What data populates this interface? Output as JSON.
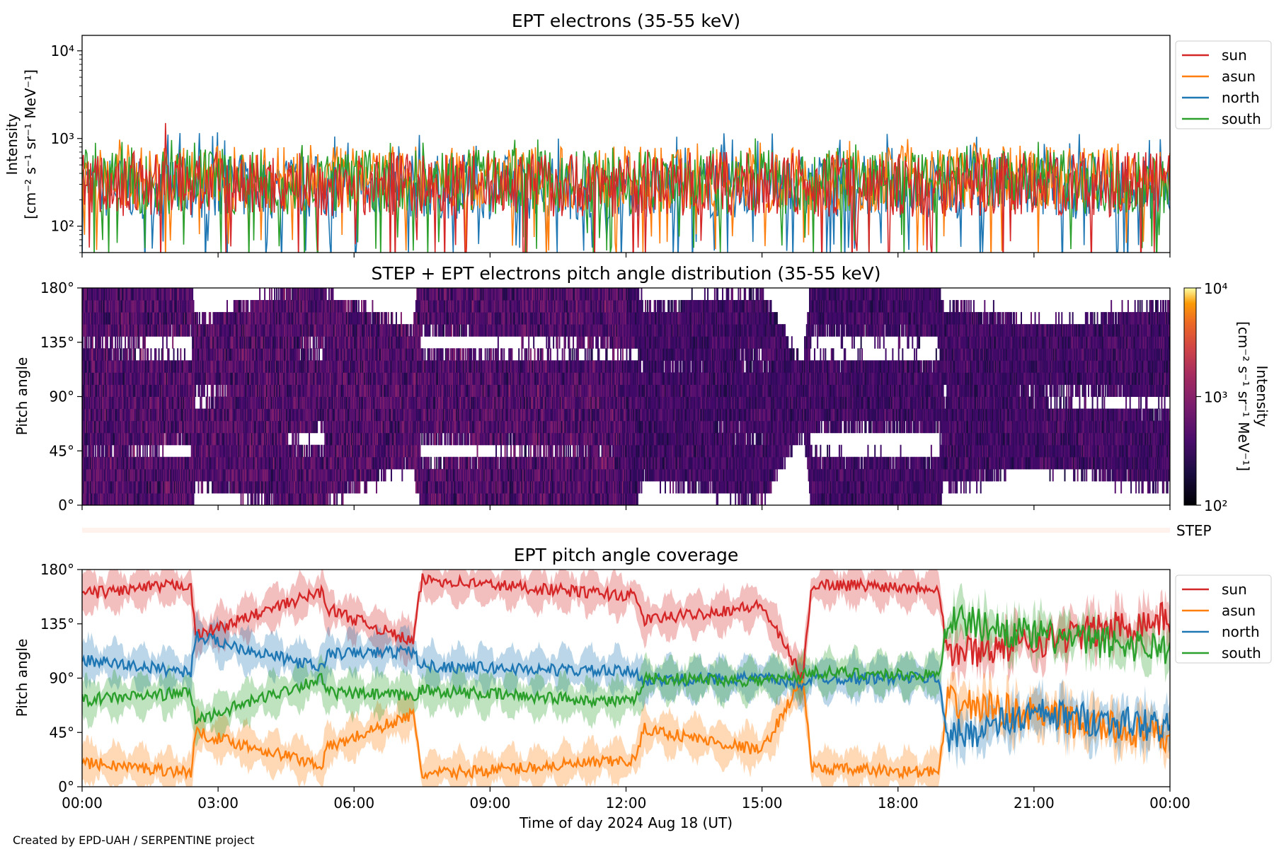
{
  "credit": "Created by EPD-UAH / SERPENTINE project",
  "colors": {
    "sun": "#d62728",
    "asun": "#ff7f0e",
    "north": "#1f77b4",
    "south": "#2ca02c",
    "step_bar": "#fff1ec"
  },
  "chart_data": [
    {
      "type": "line",
      "title": "EPT electrons (35-55 keV)",
      "ylabel_line1": "Intensity",
      "ylabel_line2": "[cm⁻² s⁻¹ sr⁻¹ MeV⁻¹]",
      "yscale": "log",
      "ylim": [
        50,
        15000
      ],
      "yticks": [
        {
          "value": 100,
          "label": "10²"
        },
        {
          "value": 1000,
          "label": "10³"
        },
        {
          "value": 10000,
          "label": "10⁴"
        }
      ],
      "xlim": [
        "2024-08-18 00:00",
        "2024-08-19 00:00"
      ],
      "legend": "right",
      "series": [
        {
          "name": "sun",
          "color": "#d62728",
          "typical": 300,
          "spread": [
            50,
            700
          ]
        },
        {
          "name": "asun",
          "color": "#ff7f0e",
          "typical": 350,
          "spread": [
            60,
            900
          ]
        },
        {
          "name": "north",
          "color": "#1f77b4",
          "typical": 280,
          "spread": [
            50,
            1100
          ]
        },
        {
          "name": "south",
          "color": "#2ca02c",
          "typical": 320,
          "spread": [
            60,
            950
          ]
        }
      ],
      "peaks": [
        {
          "time": "01:50",
          "series": "sun",
          "value": 1500
        },
        {
          "time": "02:35",
          "series": "north",
          "value": 1150
        }
      ]
    },
    {
      "type": "heatmap",
      "title": "STEP + EPT electrons pitch angle distribution (35-55 keV)",
      "ylabel": "Pitch angle",
      "ylim": [
        0,
        180
      ],
      "yticks": [
        "0°",
        "45°",
        "90°",
        "135°",
        "180°"
      ],
      "colorbar": {
        "scale": "log",
        "range": [
          100,
          10000
        ],
        "colormap": "inferno",
        "ticks": [
          "10²",
          "10³",
          "10⁴"
        ],
        "label_line1": "Intensity",
        "label_line2": "[cm⁻² s⁻¹ sr⁻¹ MeV⁻¹]"
      }
    },
    {
      "type": "bar",
      "label": "STEP"
    },
    {
      "type": "line",
      "title": "EPT pitch angle coverage",
      "ylabel": "Pitch angle",
      "xlabel": "Time of day 2024 Aug 18 (UT)",
      "ylim": [
        0,
        180
      ],
      "yticks": [
        "0°",
        "45°",
        "90°",
        "135°",
        "180°"
      ],
      "xticks": [
        "00:00",
        "03:00",
        "06:00",
        "09:00",
        "12:00",
        "15:00",
        "18:00",
        "21:00",
        "00:00"
      ],
      "legend": "right",
      "series": [
        {
          "name": "sun",
          "color": "#d62728",
          "x_hours": [
            0,
            2.4,
            2.5,
            5.3,
            5.4,
            7.3,
            7.5,
            12.2,
            12.4,
            15,
            15.9,
            16.1,
            18.9,
            19.1,
            21,
            24
          ],
          "y_deg": [
            160,
            168,
            125,
            162,
            148,
            120,
            172,
            158,
            138,
            150,
            90,
            168,
            165,
            110,
            120,
            140
          ]
        },
        {
          "name": "asun",
          "color": "#ff7f0e",
          "x_hours": [
            0,
            2.4,
            2.5,
            5.3,
            5.4,
            7.3,
            7.5,
            12.2,
            12.4,
            15,
            15.9,
            16.1,
            18.9,
            19.1,
            21,
            24
          ],
          "y_deg": [
            20,
            12,
            45,
            18,
            32,
            60,
            10,
            22,
            48,
            30,
            90,
            15,
            12,
            70,
            60,
            40
          ]
        },
        {
          "name": "north",
          "color": "#1f77b4",
          "x_hours": [
            0,
            2.4,
            2.5,
            5.3,
            5.4,
            7.3,
            7.5,
            12.2,
            12.4,
            15,
            15.9,
            16.1,
            18.9,
            19.1,
            21,
            24
          ],
          "y_deg": [
            105,
            95,
            125,
            98,
            110,
            112,
            100,
            95,
            88,
            90,
            85,
            90,
            90,
            40,
            60,
            50
          ]
        },
        {
          "name": "south",
          "color": "#2ca02c",
          "x_hours": [
            0,
            2.4,
            2.5,
            5.3,
            5.4,
            7.3,
            7.5,
            12.2,
            12.4,
            15,
            15.9,
            16.1,
            18.9,
            19.1,
            21,
            24
          ],
          "y_deg": [
            72,
            78,
            55,
            90,
            78,
            75,
            80,
            70,
            90,
            88,
            92,
            95,
            92,
            140,
            125,
            115
          ]
        }
      ]
    }
  ]
}
